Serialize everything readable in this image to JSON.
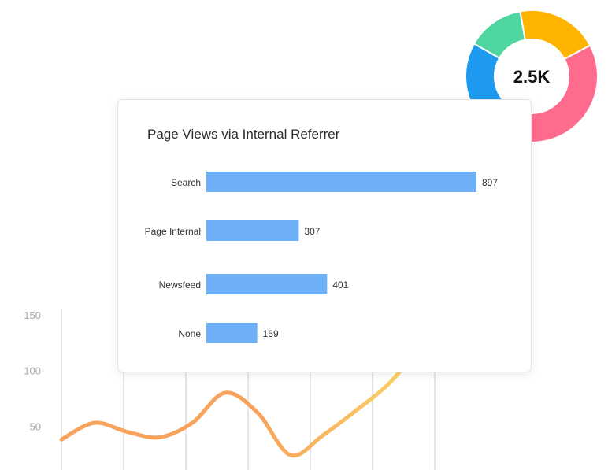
{
  "chart_data": [
    {
      "type": "line",
      "title": "",
      "xlabel": "",
      "ylabel": "",
      "ylim": [
        0,
        150
      ],
      "y_ticks": [
        "150",
        "100",
        "50"
      ],
      "grid": true,
      "series": [
        {
          "color": "#f7a35c",
          "end_color": "#fcd667",
          "x": [
            1,
            2,
            3,
            4,
            5,
            6,
            7,
            8,
            9,
            10,
            11,
            12
          ],
          "values": [
            38,
            53,
            45,
            40,
            53,
            80,
            62,
            24,
            42,
            64,
            88,
            122
          ]
        }
      ]
    },
    {
      "type": "pie",
      "center_label": "2.5K",
      "slices": [
        {
          "value": 44,
          "color": "#ff6b8d"
        },
        {
          "value": 22,
          "color": "#1e9bf0"
        },
        {
          "value": 14,
          "color": "#4fd6a0"
        },
        {
          "value": 20,
          "color": "#ffb400"
        }
      ]
    },
    {
      "type": "bar",
      "orientation": "horizontal",
      "title": "Page Views via Internal Referrer",
      "categories": [
        "Search",
        "Page Internal",
        "Newsfeed",
        "None"
      ],
      "values": [
        897,
        307,
        401,
        169
      ],
      "color": "#6eb0f7",
      "xlim": [
        0,
        897
      ]
    }
  ]
}
